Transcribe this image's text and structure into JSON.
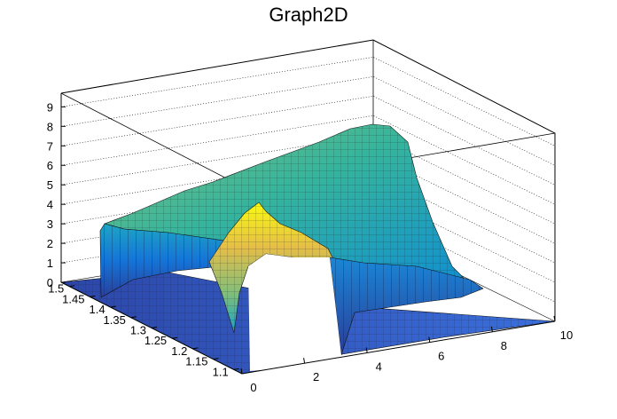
{
  "chart_data": {
    "type": "surface",
    "title": "Graph2D",
    "xlabel": "",
    "ylabel": "",
    "zlabel": "",
    "x_ticks": [
      "0",
      "2",
      "4",
      "6",
      "8",
      "10"
    ],
    "y_ticks": [
      "1.1",
      "1.15",
      "1.2",
      "1.25",
      "1.3",
      "1.35",
      "1.4",
      "1.45",
      "1.5"
    ],
    "z_ticks": [
      "0",
      "1",
      "2",
      "3",
      "4",
      "5",
      "6",
      "7",
      "8",
      "9"
    ],
    "xlim": [
      0,
      10
    ],
    "ylim": [
      1.08,
      1.52
    ],
    "zlim": [
      0,
      9.7
    ],
    "grid": true,
    "colormap": [
      "#352a87",
      "#0f5cdd",
      "#1481d6",
      "#06a4ca",
      "#2eb7a4",
      "#87bf77",
      "#d1bb59",
      "#fec832",
      "#f9fb0e"
    ],
    "regions": [
      {
        "name": "",
        "note": "",
        "x_range": [
          0,
          10
        ],
        "y_range": [
          1.08,
          1.14
        ],
        "z": 0.3
      }
    ],
    "ridges": [
      {
        "x": [
          0,
          1,
          2,
          3,
          4,
          5,
          6,
          7,
          8
        ],
        "y": 1.5,
        "z": [
          3.2,
          3.6,
          3.8,
          4.2,
          4.8,
          5.6,
          6.5,
          7.6,
          8.2
        ]
      },
      {
        "x": [
          2.5,
          3.0,
          3.3,
          3.6,
          4.0
        ],
        "y": 1.3,
        "z": [
          2.0,
          3.4,
          4.4,
          3.6,
          2.6
        ]
      }
    ]
  }
}
